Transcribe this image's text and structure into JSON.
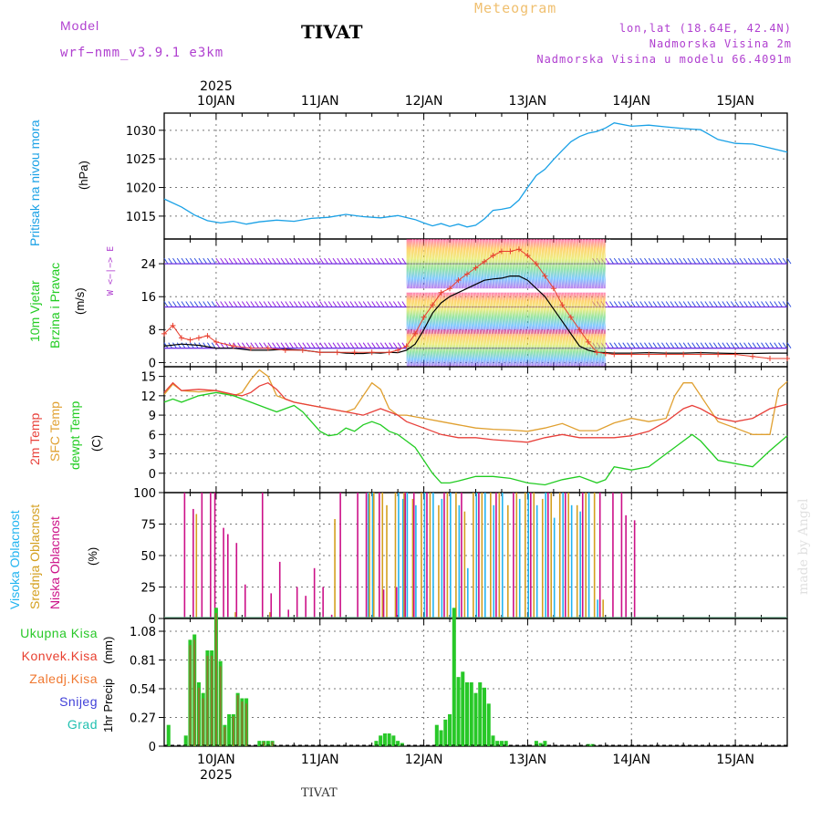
{
  "header": {
    "model_label": "Model",
    "model_name": "wrf−nmm_v3.9.1  e3km",
    "station": "TIVAT",
    "product": "Meteogram",
    "lonlat": "lon,lat (18.64E, 42.4N)",
    "elev": "Nadmorska Visina 2m",
    "elev_model": "Nadmorska Visina u modelu 66.4091m",
    "footer_station": "TIVAT",
    "credit": "made by Angel"
  },
  "colors": {
    "pressure": "#1aa1e6",
    "temp2m": "#e8403a",
    "sfc": "#e0a030",
    "dew": "#22cc22",
    "vis_high": "#22b4f0",
    "vis_mid": "#d4a020",
    "vis_low": "#cc1188",
    "rain_total": "#28c828",
    "rain_conv": "#e84030",
    "rain_frz": "#f07830",
    "snow": "#4040d8",
    "grad": "#20c0b0",
    "wind_text": "#b040d0"
  },
  "chart_data": [
    {
      "name": "pressure",
      "type": "line",
      "ylabel": "Pritisak na nivou mora",
      "unit": "(hPa)",
      "ylim": [
        1011,
        1033
      ],
      "yticks": [
        1015,
        1020,
        1025,
        1030
      ],
      "day_labels": [
        "10JAN",
        "11JAN",
        "12JAN",
        "13JAN",
        "14JAN",
        "15JAN"
      ],
      "year": "2025",
      "x_start_hour": -12,
      "x_end_hour": 132,
      "series": [
        {
          "name": "slp",
          "x": [
            -12,
            -8,
            -5,
            -2,
            1,
            4,
            7,
            10,
            14,
            18,
            22,
            26,
            30,
            34,
            38,
            42,
            46,
            48,
            50,
            52,
            54,
            56,
            58,
            60,
            62,
            64,
            66,
            68,
            70,
            72,
            74,
            76,
            78,
            80,
            82,
            84,
            86,
            88,
            90,
            92,
            96,
            100,
            104,
            108,
            112,
            116,
            120,
            124,
            128,
            132
          ],
          "values": [
            1018,
            1016.6,
            1015.2,
            1014.2,
            1013.8,
            1014.1,
            1013.6,
            1014,
            1014.3,
            1014.1,
            1014.6,
            1014.8,
            1015.3,
            1014.9,
            1014.7,
            1015.1,
            1014.4,
            1013.8,
            1013.3,
            1013.7,
            1013.2,
            1013.6,
            1013.1,
            1013.4,
            1014.5,
            1016.0,
            1016.2,
            1016.5,
            1017.8,
            1020.0,
            1022.1,
            1023.2,
            1024.9,
            1026.5,
            1028.0,
            1028.9,
            1029.5,
            1029.8,
            1030.4,
            1031.3,
            1030.7,
            1030.9,
            1030.6,
            1030.3,
            1030.1,
            1028.4,
            1027.7,
            1027.6,
            1026.9,
            1026.2
          ]
        }
      ]
    },
    {
      "name": "wind",
      "type": "line",
      "ylabel_1": "10m Vjetar",
      "ylabel_2": "Brzina i Pravac",
      "unit": "(m/s)",
      "dir_legend": "W  <−|−>  E",
      "ylim": [
        -1,
        30
      ],
      "yticks": [
        0,
        8,
        16,
        24
      ],
      "band_levels": [
        3.5,
        13.5,
        24
      ],
      "series": [
        {
          "name": "speed",
          "x": [
            -12,
            -8,
            -4,
            0,
            4,
            8,
            12,
            16,
            20,
            24,
            28,
            30,
            32,
            34,
            36,
            38,
            40,
            42,
            44,
            46,
            48,
            50,
            52,
            54,
            56,
            58,
            60,
            62,
            64,
            66,
            68,
            70,
            72,
            74,
            76,
            78,
            80,
            82,
            84,
            86,
            88,
            90,
            92,
            96,
            100,
            104,
            108,
            112,
            116,
            120,
            124,
            128,
            132
          ],
          "values": [
            4,
            4.5,
            4.2,
            3.5,
            3.5,
            3,
            3,
            3.2,
            3,
            2.5,
            2.5,
            2.3,
            2.2,
            2.2,
            2.4,
            2.3,
            2.5,
            2.4,
            3,
            4.5,
            8,
            12,
            14.5,
            16,
            17,
            18,
            19,
            20,
            20.3,
            20.5,
            21,
            21,
            20,
            18,
            16,
            13,
            10,
            7,
            4,
            3,
            2.5,
            2.4,
            2.3,
            2.3,
            2.4,
            2.3,
            2.3,
            2.4,
            2.3,
            2.2,
            2.2,
            2.3,
            2.3
          ]
        },
        {
          "name": "gust",
          "x": [
            -12,
            -10,
            -8,
            -6,
            -4,
            -2,
            0,
            4,
            8,
            12,
            16,
            20,
            24,
            28,
            32,
            36,
            40,
            42,
            44,
            46,
            48,
            50,
            52,
            54,
            56,
            58,
            60,
            62,
            64,
            66,
            68,
            70,
            72,
            74,
            76,
            78,
            80,
            82,
            84,
            86,
            88,
            90,
            92,
            96,
            100,
            104,
            108,
            112,
            116,
            120,
            124,
            128,
            132
          ],
          "values": [
            7,
            9,
            6,
            5.5,
            6,
            6.5,
            5,
            4,
            3.5,
            3.5,
            3,
            3,
            2.5,
            2.5,
            2.5,
            2.5,
            2.5,
            3,
            4,
            7,
            11,
            14,
            17,
            18,
            20,
            21.5,
            23,
            24.5,
            26,
            27,
            27,
            27.5,
            26,
            24,
            21,
            18,
            14,
            11,
            8,
            5,
            2.5,
            2.2,
            2,
            2,
            2,
            2,
            2,
            2,
            2,
            2,
            1.5,
            1,
            1
          ]
        }
      ]
    },
    {
      "name": "temperature",
      "type": "line",
      "ylabel_1": "2m Temp",
      "ylabel_2": "SFC Temp",
      "ylabel_3": "dewpt Temp",
      "unit": "(C)",
      "ylim": [
        -3,
        16.5
      ],
      "yticks": [
        0,
        3,
        6,
        9,
        12,
        15
      ],
      "series": [
        {
          "name": "t2m",
          "x": [
            -12,
            -10,
            -8,
            -4,
            0,
            4,
            6,
            8,
            10,
            12,
            14,
            16,
            18,
            22,
            26,
            30,
            34,
            38,
            40,
            42,
            44,
            48,
            52,
            56,
            60,
            64,
            68,
            72,
            76,
            80,
            84,
            88,
            92,
            96,
            100,
            104,
            106,
            108,
            110,
            112,
            116,
            120,
            124,
            128,
            132
          ],
          "values": [
            12.5,
            14,
            12.8,
            13,
            12.8,
            12.2,
            12,
            12.5,
            13.5,
            14,
            13,
            11.5,
            11,
            10.5,
            10,
            9.5,
            9,
            10,
            9.5,
            9,
            8,
            7,
            6,
            5.5,
            5.5,
            5.2,
            5,
            4.8,
            5.5,
            6,
            5.5,
            5.5,
            5.5,
            5.8,
            6.5,
            8,
            9,
            10,
            10.5,
            10,
            8.5,
            8,
            8.5,
            10,
            10.7
          ]
        },
        {
          "name": "sfc",
          "x": [
            -12,
            -10,
            -8,
            -4,
            0,
            4,
            6,
            8,
            10,
            12,
            14,
            16,
            18,
            22,
            26,
            30,
            32,
            34,
            36,
            38,
            40,
            42,
            44,
            48,
            52,
            56,
            60,
            64,
            68,
            72,
            76,
            80,
            84,
            88,
            92,
            96,
            100,
            104,
            106,
            108,
            110,
            112,
            116,
            120,
            124,
            128,
            130,
            132
          ],
          "values": [
            12.2,
            13.8,
            12.8,
            12.6,
            12.8,
            12,
            12.5,
            14.5,
            16,
            15,
            12,
            11.5,
            11,
            10.5,
            10,
            9.5,
            10,
            12,
            14,
            13,
            10,
            9,
            9,
            8.5,
            8,
            7.5,
            7,
            6.8,
            6.7,
            6.5,
            7,
            7.7,
            6.6,
            6.6,
            7.8,
            8.5,
            8,
            8.5,
            12,
            14,
            14,
            12,
            8,
            7,
            6,
            6,
            13,
            14.2
          ]
        },
        {
          "name": "dewpt",
          "x": [
            -12,
            -10,
            -8,
            -4,
            0,
            4,
            8,
            12,
            14,
            16,
            18,
            20,
            22,
            24,
            26,
            28,
            30,
            32,
            34,
            36,
            38,
            40,
            42,
            44,
            46,
            48,
            50,
            52,
            54,
            56,
            60,
            64,
            68,
            72,
            76,
            80,
            84,
            88,
            90,
            92,
            96,
            100,
            104,
            108,
            110,
            112,
            116,
            120,
            124,
            128,
            132
          ],
          "values": [
            11,
            11.5,
            11,
            12,
            12.5,
            12,
            11,
            10,
            9.5,
            10,
            10.5,
            9.5,
            8,
            6.5,
            5.8,
            6,
            7,
            6.5,
            7.5,
            8,
            7.5,
            6.5,
            6,
            5,
            4,
            2,
            0,
            -1.5,
            -1.5,
            -1.2,
            -0.5,
            -0.5,
            -0.8,
            -1.5,
            -1.8,
            -1,
            -0.5,
            -1.5,
            -1,
            1,
            0.5,
            1,
            3,
            5,
            6,
            5,
            2,
            1.5,
            1,
            3.5,
            5.8
          ]
        }
      ]
    },
    {
      "name": "clouds",
      "type": "bar",
      "ylabel_1": "Visoka Oblacnost",
      "ylabel_2": "Srednja Oblacnost",
      "ylabel_3": "Niska Oblacnost",
      "unit": "(%)",
      "ylim": [
        0,
        100
      ],
      "yticks": [
        0,
        25,
        50,
        75,
        100
      ],
      "series": [
        {
          "name": "high",
          "x": [
            35,
            36,
            42,
            43,
            44,
            46,
            48,
            50,
            52,
            54,
            56,
            58,
            60,
            62,
            64,
            66,
            70,
            72,
            74,
            76,
            78,
            80,
            82,
            84,
            86,
            88
          ],
          "values": [
            100,
            100,
            100,
            95,
            100,
            90,
            100,
            100,
            95,
            100,
            90,
            40,
            100,
            100,
            90,
            100,
            95,
            100,
            90,
            100,
            80,
            100,
            90,
            85,
            100,
            15
          ]
        },
        {
          "name": "mid",
          "x": [
            -5,
            4,
            12,
            27,
            35,
            36,
            38,
            39,
            41,
            43,
            45,
            47,
            49,
            51,
            53,
            55,
            57,
            59,
            61,
            63,
            65,
            67,
            69,
            71,
            73,
            75,
            77,
            79,
            81,
            83,
            85,
            87,
            89
          ],
          "values": [
            83,
            5,
            5,
            79,
            100,
            100,
            100,
            90,
            100,
            100,
            95,
            100,
            100,
            90,
            100,
            100,
            85,
            100,
            100,
            100,
            100,
            90,
            100,
            100,
            100,
            95,
            100,
            100,
            100,
            90,
            100,
            100,
            15
          ]
        },
        {
          "name": "low",
          "x": [
            -8,
            -6,
            -4,
            -2,
            -1,
            1,
            2,
            4,
            6,
            10,
            12,
            14,
            16,
            18,
            20,
            22,
            24,
            26,
            28,
            32,
            34,
            37,
            38,
            41,
            43,
            45,
            48,
            52,
            56,
            60,
            64,
            68,
            72,
            76,
            80,
            84,
            88,
            91,
            93,
            94,
            96
          ],
          "values": [
            100,
            87,
            100,
            100,
            100,
            72,
            67,
            60,
            27,
            100,
            20,
            45,
            7,
            25,
            18,
            40,
            25,
            3,
            100,
            100,
            100,
            100,
            23,
            25,
            100,
            100,
            100,
            100,
            100,
            100,
            100,
            100,
            100,
            100,
            100,
            100,
            100,
            100,
            100,
            82,
            78
          ]
        }
      ]
    },
    {
      "name": "precip",
      "type": "bar",
      "ylabel_1": "1hr Precip",
      "unit": "(mm)",
      "ylim": [
        0,
        1.2
      ],
      "yticks": [
        0,
        0.27,
        0.54,
        0.81,
        1.08
      ],
      "ytick_labels": [
        "0",
        "0.27",
        "0.54",
        "0.81",
        "1.08"
      ],
      "legend": [
        "Ukupna Kisa",
        "Konvek.Kisa",
        "Zaledj.Kisa",
        "Snijeg",
        "Grad"
      ],
      "series": [
        {
          "name": "total",
          "x": [
            -11,
            -9,
            -7,
            -6,
            -5,
            -4,
            -3,
            -2,
            -1,
            0,
            1,
            2,
            3,
            4,
            5,
            6,
            7,
            10,
            11,
            12,
            13,
            37,
            38,
            39,
            40,
            41,
            42,
            43,
            51,
            52,
            53,
            54,
            55,
            56,
            57,
            58,
            59,
            60,
            61,
            62,
            63,
            64,
            65,
            66,
            67,
            74,
            75,
            76,
            86,
            87
          ],
          "values": [
            0.2,
            0,
            0.1,
            1.0,
            1.05,
            0.6,
            0.5,
            0.9,
            0.9,
            1.3,
            0.8,
            0.2,
            0.3,
            0.3,
            0.5,
            0.45,
            0.45,
            0.05,
            0.05,
            0.05,
            0.05,
            0.05,
            0.1,
            0.12,
            0.12,
            0.1,
            0.05,
            0.03,
            0.2,
            0.15,
            0.25,
            0.3,
            1.3,
            0.65,
            0.7,
            0.6,
            0.6,
            0.5,
            0.6,
            0.55,
            0.4,
            0.1,
            0.05,
            0.05,
            0.05,
            0.05,
            0.03,
            0.05,
            0.02,
            0.02
          ]
        },
        {
          "name": "convective",
          "x": [
            -6,
            -5,
            -4,
            -3,
            -2,
            -1,
            0,
            1,
            2,
            4,
            5,
            6,
            7,
            11,
            13
          ],
          "values": [
            0.95,
            1.0,
            0.55,
            0.45,
            0.85,
            0.85,
            1.25,
            0.75,
            0.18,
            0.28,
            0.48,
            0.42,
            0.4,
            0.04,
            0.04
          ]
        }
      ]
    }
  ]
}
